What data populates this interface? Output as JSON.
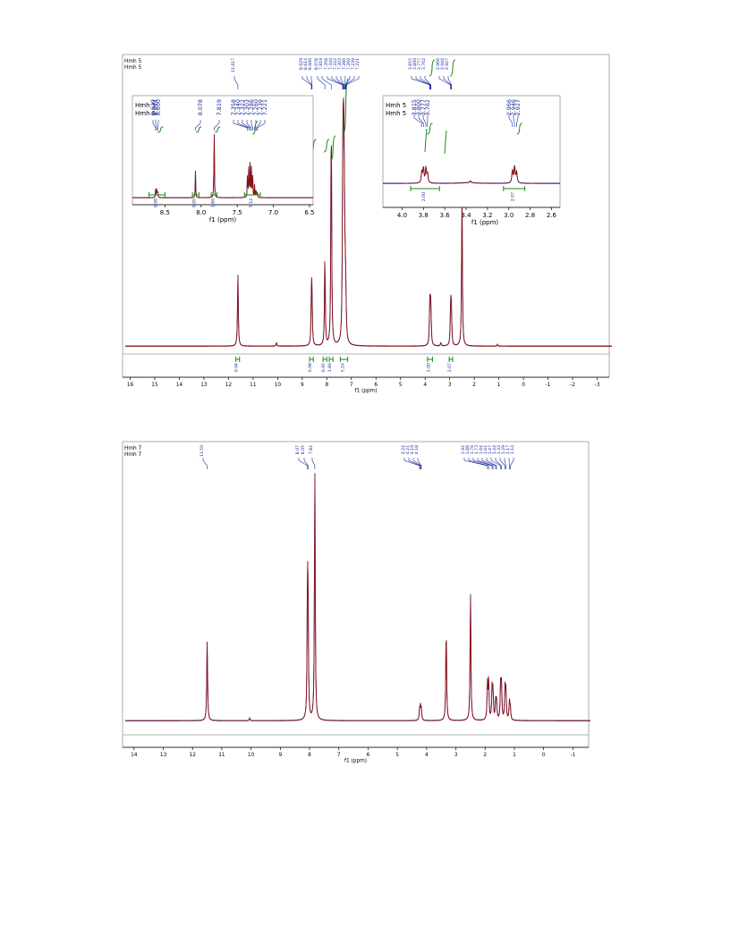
{
  "chart_data": [
    {
      "type": "line",
      "sample_labels": [
        "Hmh 5",
        "Hmh 5"
      ],
      "xlabel": "f1 (ppm)",
      "xlim": [
        16.2,
        -3.6
      ],
      "x_ticks": [
        "16",
        "15",
        "14",
        "13",
        "12",
        "11",
        "10",
        "9",
        "8",
        "7",
        "6",
        "5",
        "4",
        "3",
        "2",
        "1",
        "0",
        "-1",
        "-2",
        "-3"
      ],
      "peak_labels": [
        "11.617",
        "8.629",
        "8.614",
        "8.600",
        "8.078",
        "7.819",
        "7.358",
        "7.340",
        "7.322",
        "7.303",
        "7.286",
        "7.260",
        "7.239",
        "7.221",
        "3.815",
        "3.800",
        "3.777",
        "3.762",
        "2.966",
        "2.946",
        "2.927"
      ],
      "integrals": [
        "0.94",
        "0.98",
        "0.95",
        "1.86",
        "5.14",
        "2.00",
        "2.07"
      ],
      "peaks": [
        {
          "ppm": 11.617,
          "height": 0.21
        },
        {
          "ppm": 10.05,
          "height": 0.01
        },
        {
          "ppm": 8.629,
          "height": 0.08
        },
        {
          "ppm": 8.614,
          "height": 0.1
        },
        {
          "ppm": 8.6,
          "height": 0.08
        },
        {
          "ppm": 8.078,
          "height": 0.26
        },
        {
          "ppm": 7.819,
          "height": 0.7
        },
        {
          "ppm": 7.358,
          "height": 0.24
        },
        {
          "ppm": 7.34,
          "height": 0.3
        },
        {
          "ppm": 7.322,
          "height": 0.32
        },
        {
          "ppm": 7.303,
          "height": 0.3
        },
        {
          "ppm": 7.286,
          "height": 0.2
        },
        {
          "ppm": 7.26,
          "height": 0.12
        },
        {
          "ppm": 7.239,
          "height": 0.1
        },
        {
          "ppm": 7.221,
          "height": 0.06
        },
        {
          "ppm": 3.815,
          "height": 0.06
        },
        {
          "ppm": 3.8,
          "height": 0.08
        },
        {
          "ppm": 3.777,
          "height": 0.08
        },
        {
          "ppm": 3.762,
          "height": 0.05
        },
        {
          "ppm": 3.36,
          "height": 0.01
        },
        {
          "ppm": 2.966,
          "height": 0.07
        },
        {
          "ppm": 2.946,
          "height": 0.09
        },
        {
          "ppm": 2.927,
          "height": 0.06
        },
        {
          "ppm": 2.5,
          "height": 0.45
        },
        {
          "ppm": 1.06,
          "height": 0.005
        }
      ],
      "insets": [
        {
          "sample_labels": [
            "Hmh 5",
            "Hmh 5"
          ],
          "xlabel": "f1 (ppm)",
          "xlim": [
            8.95,
            6.45
          ],
          "x_ticks": [
            "8.5",
            "8.0",
            "7.5",
            "7.0",
            "6.5"
          ],
          "peak_labels": [
            "8.629",
            "8.614",
            "8.600",
            "8.078",
            "7.819",
            "7.358",
            "7.340",
            "7.322",
            "7.303",
            "7.286",
            "7.260",
            "7.239",
            "7.221"
          ],
          "integrals": [
            "0.98",
            "0.95",
            "1.86",
            "5.14"
          ]
        },
        {
          "sample_labels": [
            "Hmh 5",
            "Hmh 5"
          ],
          "xlabel": "f1 (ppm)",
          "xlim": [
            4.18,
            2.52
          ],
          "x_ticks": [
            "4.0",
            "3.8",
            "3.6",
            "3.4",
            "3.2",
            "3.0",
            "2.8",
            "2.6"
          ],
          "peak_labels": [
            "3.815",
            "3.800",
            "3.777",
            "3.762",
            "2.966",
            "2.946",
            "2.927"
          ],
          "integrals": [
            "2.00",
            "2.07"
          ]
        }
      ]
    },
    {
      "type": "line",
      "sample_labels": [
        "Hmh 7",
        "Hmh 7"
      ],
      "xlabel": "f1 (ppm)",
      "xlim": [
        14.3,
        -1.6
      ],
      "x_ticks": [
        "14",
        "13",
        "12",
        "11",
        "10",
        "9",
        "8",
        "7",
        "6",
        "5",
        "4",
        "3",
        "2",
        "1",
        "0",
        "-1"
      ],
      "peak_labels": [
        "11.50",
        "8.07",
        "8.05",
        "7.82",
        "4.24",
        "4.21",
        "4.19",
        "4.18",
        "1.92",
        "1.88",
        "1.76",
        "1.73",
        "1.64",
        "1.61",
        "1.47",
        "1.44",
        "1.32",
        "1.29",
        "1.17",
        "1.14"
      ],
      "integrals": [],
      "peaks": [
        {
          "ppm": 11.5,
          "height": 0.31
        },
        {
          "ppm": 10.05,
          "height": 0.01
        },
        {
          "ppm": 8.07,
          "height": 0.52
        },
        {
          "ppm": 8.05,
          "height": 0.3
        },
        {
          "ppm": 7.82,
          "height": 0.97
        },
        {
          "ppm": 4.24,
          "height": 0.04
        },
        {
          "ppm": 4.21,
          "height": 0.05
        },
        {
          "ppm": 4.18,
          "height": 0.04
        },
        {
          "ppm": 3.33,
          "height": 0.37
        },
        {
          "ppm": 2.5,
          "height": 0.5
        },
        {
          "ppm": 1.92,
          "height": 0.14
        },
        {
          "ppm": 1.88,
          "height": 0.16
        },
        {
          "ppm": 1.76,
          "height": 0.13
        },
        {
          "ppm": 1.73,
          "height": 0.1
        },
        {
          "ppm": 1.64,
          "height": 0.07
        },
        {
          "ppm": 1.61,
          "height": 0.07
        },
        {
          "ppm": 1.47,
          "height": 0.14
        },
        {
          "ppm": 1.44,
          "height": 0.13
        },
        {
          "ppm": 1.32,
          "height": 0.12
        },
        {
          "ppm": 1.29,
          "height": 0.11
        },
        {
          "ppm": 1.17,
          "height": 0.07
        },
        {
          "ppm": 1.14,
          "height": 0.05
        }
      ]
    }
  ],
  "colors": {
    "spectrum": "#8b1010",
    "spectrum_overlay": "#2a3ab8",
    "peak_label": "#1a2a9a",
    "integral": "#1a8a1a",
    "frame": "#9a9a9a"
  }
}
